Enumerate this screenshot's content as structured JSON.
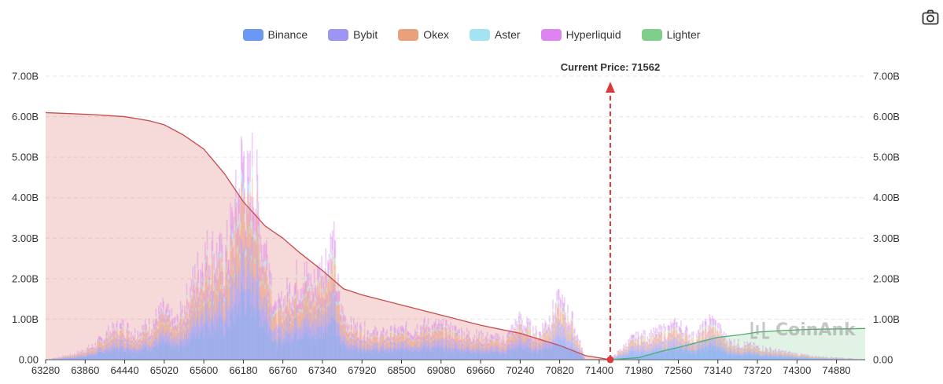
{
  "legend": [
    {
      "name": "Binance",
      "color": "#6b97f5"
    },
    {
      "name": "Bybit",
      "color": "#9d94f4"
    },
    {
      "name": "Okex",
      "color": "#e9a17b"
    },
    {
      "name": "Aster",
      "color": "#a4e3f2"
    },
    {
      "name": "Hyperliquid",
      "color": "#dc84ef"
    },
    {
      "name": "Lighter",
      "color": "#7fcf8a"
    }
  ],
  "current_price_label": "Current Price:  71562",
  "watermark": "CoinAnk",
  "toolbar": {
    "camera_icon": "camera-icon"
  },
  "chart_data": {
    "type": "bar",
    "x_ticks": [
      "63280",
      "63860",
      "64440",
      "65020",
      "65600",
      "66180",
      "66760",
      "67340",
      "67920",
      "68500",
      "69080",
      "69660",
      "70240",
      "70820",
      "71400",
      "71980",
      "72560",
      "73140",
      "73720",
      "74300",
      "74880"
    ],
    "y_ticks_left": [
      "0.00",
      "1.00B",
      "2.00B",
      "3.00B",
      "4.00B",
      "5.00B",
      "6.00B",
      "7.00B"
    ],
    "y_ticks_right": [
      "0.00",
      "1.00B",
      "2.00B",
      "3.00B",
      "4.00B",
      "5.00B",
      "6.00B",
      "7.00B"
    ],
    "xlim": [
      63280,
      75300
    ],
    "ylim": [
      0,
      7.0
    ],
    "current_price": 71562,
    "grid": true,
    "legend_position": "top",
    "bar_profile": [
      [
        63280,
        0.0
      ],
      [
        63700,
        0.15
      ],
      [
        64000,
        0.4
      ],
      [
        64200,
        0.75
      ],
      [
        64400,
        0.95
      ],
      [
        64600,
        0.75
      ],
      [
        64800,
        0.95
      ],
      [
        65000,
        1.35
      ],
      [
        65200,
        1.0
      ],
      [
        65400,
        1.9
      ],
      [
        65600,
        2.9
      ],
      [
        65750,
        3.0
      ],
      [
        65900,
        2.7
      ],
      [
        66000,
        3.6
      ],
      [
        66100,
        4.4
      ],
      [
        66180,
        5.8
      ],
      [
        66250,
        4.5
      ],
      [
        66330,
        5.4
      ],
      [
        66450,
        3.4
      ],
      [
        66550,
        3.0
      ],
      [
        66650,
        1.3
      ],
      [
        66760,
        1.6
      ],
      [
        66900,
        2.1
      ],
      [
        67050,
        2.4
      ],
      [
        67200,
        2.0
      ],
      [
        67340,
        2.6
      ],
      [
        67500,
        3.2
      ],
      [
        67600,
        1.4
      ],
      [
        67750,
        0.95
      ],
      [
        67920,
        0.85
      ],
      [
        68200,
        0.7
      ],
      [
        68500,
        0.8
      ],
      [
        68800,
        0.95
      ],
      [
        69080,
        0.9
      ],
      [
        69400,
        0.75
      ],
      [
        69660,
        0.65
      ],
      [
        70000,
        0.55
      ],
      [
        70240,
        1.1
      ],
      [
        70500,
        0.7
      ],
      [
        70820,
        1.6
      ],
      [
        71000,
        1.1
      ],
      [
        71200,
        0.0
      ],
      [
        71562,
        0.0
      ],
      [
        71900,
        0.6
      ],
      [
        72200,
        0.7
      ],
      [
        72560,
        0.95
      ],
      [
        72800,
        0.6
      ],
      [
        73050,
        1.1
      ],
      [
        73300,
        0.5
      ],
      [
        73600,
        0.4
      ],
      [
        74000,
        0.25
      ],
      [
        74500,
        0.1
      ],
      [
        75000,
        0.05
      ],
      [
        75300,
        0.0
      ]
    ],
    "series": [
      {
        "name": "cumulative-long",
        "color": "#c94b4b",
        "points": [
          [
            63280,
            6.1
          ],
          [
            64000,
            6.05
          ],
          [
            64440,
            6.0
          ],
          [
            64800,
            5.9
          ],
          [
            65020,
            5.8
          ],
          [
            65300,
            5.55
          ],
          [
            65600,
            5.2
          ],
          [
            65900,
            4.6
          ],
          [
            66180,
            3.9
          ],
          [
            66500,
            3.3
          ],
          [
            66760,
            3.0
          ],
          [
            67000,
            2.65
          ],
          [
            67340,
            2.2
          ],
          [
            67650,
            1.75
          ],
          [
            67920,
            1.6
          ],
          [
            68500,
            1.35
          ],
          [
            69080,
            1.1
          ],
          [
            69660,
            0.85
          ],
          [
            70240,
            0.65
          ],
          [
            70820,
            0.35
          ],
          [
            71200,
            0.1
          ],
          [
            71562,
            0.0
          ]
        ]
      },
      {
        "name": "cumulative-short",
        "color": "#4caf6a",
        "points": [
          [
            71562,
            0.0
          ],
          [
            71980,
            0.05
          ],
          [
            72300,
            0.2
          ],
          [
            72560,
            0.3
          ],
          [
            72900,
            0.45
          ],
          [
            73140,
            0.55
          ],
          [
            73500,
            0.62
          ],
          [
            73720,
            0.68
          ],
          [
            74100,
            0.72
          ],
          [
            74500,
            0.75
          ],
          [
            75000,
            0.76
          ],
          [
            75300,
            0.77
          ]
        ]
      }
    ]
  }
}
